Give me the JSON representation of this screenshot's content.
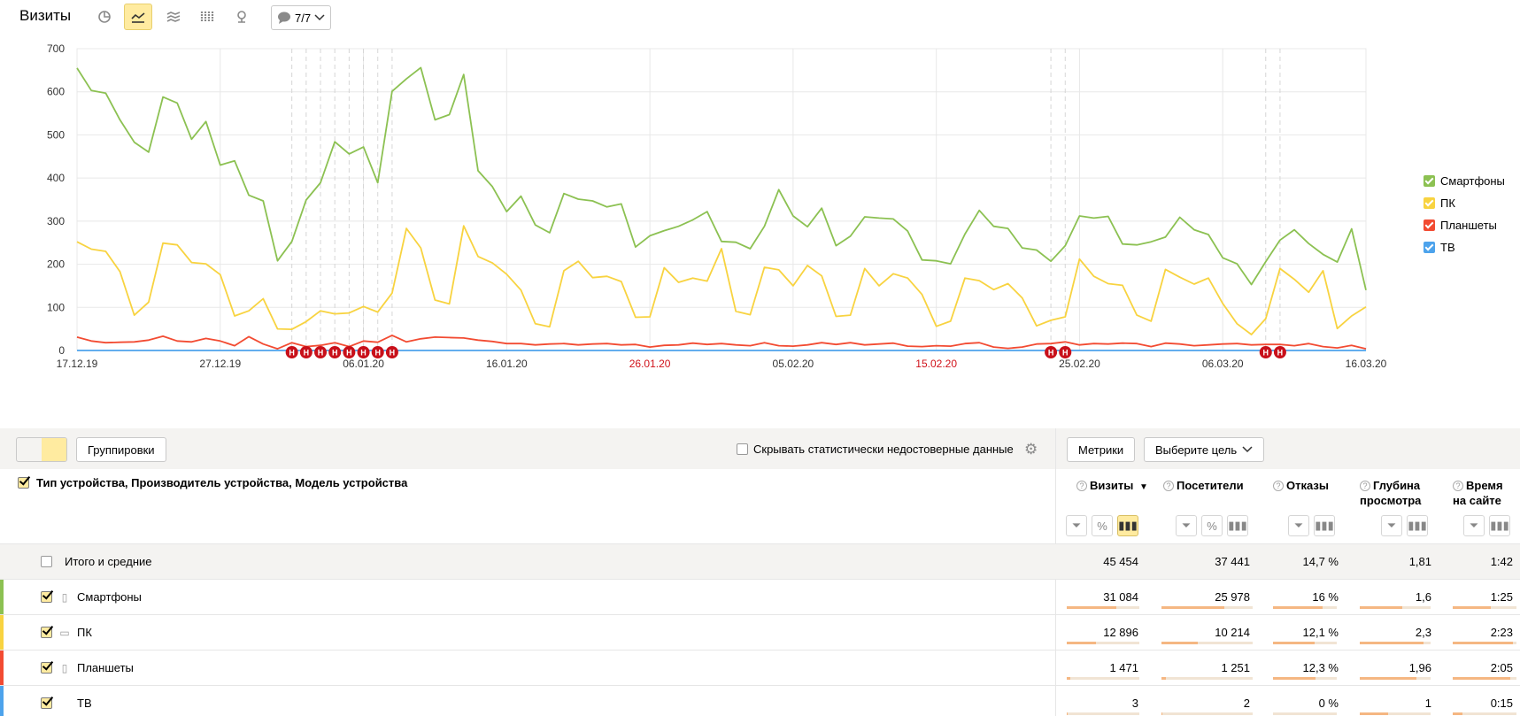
{
  "header": {
    "title": "Визиты",
    "annotations_label": "7/7"
  },
  "chart_data": {
    "type": "line",
    "ylim": [
      0,
      700
    ],
    "yticks": [
      0,
      100,
      200,
      300,
      400,
      500,
      600,
      700
    ],
    "x_tick_labels": [
      {
        "label": "17.12.19",
        "index": 0,
        "weekend": false
      },
      {
        "label": "27.12.19",
        "index": 10,
        "weekend": false
      },
      {
        "label": "06.01.20",
        "index": 20,
        "weekend": false
      },
      {
        "label": "16.01.20",
        "index": 30,
        "weekend": false
      },
      {
        "label": "26.01.20",
        "index": 40,
        "weekend": true
      },
      {
        "label": "05.02.20",
        "index": 50,
        "weekend": false
      },
      {
        "label": "15.02.20",
        "index": 60,
        "weekend": true
      },
      {
        "label": "25.02.20",
        "index": 70,
        "weekend": false
      },
      {
        "label": "06.03.20",
        "index": 80,
        "weekend": false
      },
      {
        "label": "16.03.20",
        "index": 90,
        "weekend": false
      }
    ],
    "marker_indices": [
      15,
      16,
      17,
      18,
      19,
      20,
      21,
      22,
      68,
      69,
      83,
      84
    ],
    "marker_label": "Н",
    "series": [
      {
        "name": "Смартфоны",
        "color": "#8cc152",
        "values": [
          655,
          603,
          597,
          535,
          483,
          460,
          588,
          574,
          490,
          531,
          430,
          440,
          360,
          347,
          208,
          253,
          349,
          389,
          484,
          456,
          472,
          389,
          601,
          630,
          656,
          535,
          547,
          640,
          417,
          380,
          322,
          358,
          291,
          273,
          364,
          351,
          347,
          333,
          340,
          240,
          266,
          278,
          288,
          303,
          322,
          253,
          251,
          236,
          288,
          373,
          312,
          287,
          330,
          243,
          265,
          310,
          307,
          305,
          277,
          210,
          208,
          201,
          270,
          325,
          288,
          283,
          238,
          233,
          207,
          243,
          312,
          307,
          311,
          247,
          245,
          252,
          263,
          309,
          280,
          269,
          215,
          201,
          153,
          206,
          256,
          280,
          248,
          223,
          205,
          282,
          140
        ]
      },
      {
        "name": "ПК",
        "color": "#f8d340",
        "values": [
          252,
          235,
          230,
          183,
          82,
          112,
          249,
          245,
          204,
          201,
          176,
          80,
          92,
          120,
          50,
          49,
          67,
          92,
          85,
          87,
          102,
          89,
          133,
          283,
          238,
          117,
          108,
          289,
          218,
          203,
          177,
          140,
          62,
          55,
          185,
          207,
          169,
          172,
          160,
          77,
          78,
          192,
          158,
          168,
          161,
          236,
          91,
          83,
          193,
          187,
          150,
          197,
          173,
          79,
          82,
          190,
          150,
          178,
          168,
          130,
          56,
          68,
          168,
          162,
          141,
          155,
          122,
          57,
          70,
          78,
          212,
          172,
          155,
          151,
          82,
          68,
          188,
          170,
          154,
          168,
          109,
          62,
          37,
          74,
          190,
          165,
          135,
          185,
          51,
          80,
          101
        ]
      },
      {
        "name": "Планшеты",
        "color": "#f24b32",
        "values": [
          31,
          22,
          18,
          19,
          20,
          24,
          33,
          22,
          20,
          28,
          22,
          11,
          32,
          15,
          4,
          18,
          9,
          12,
          18,
          9,
          22,
          19,
          35,
          20,
          27,
          31,
          30,
          29,
          24,
          21,
          16,
          16,
          13,
          15,
          16,
          13,
          15,
          16,
          13,
          14,
          8,
          12,
          13,
          17,
          14,
          16,
          13,
          11,
          18,
          11,
          10,
          13,
          18,
          14,
          18,
          13,
          15,
          17,
          10,
          9,
          11,
          10,
          16,
          18,
          8,
          5,
          8,
          15,
          16,
          20,
          13,
          16,
          15,
          17,
          16,
          9,
          17,
          15,
          11,
          13,
          15,
          16,
          13,
          14,
          14,
          11,
          16,
          9,
          6,
          12,
          4
        ]
      },
      {
        "name": "ТВ",
        "color": "#4da3ec",
        "values": [
          0,
          0,
          0,
          0,
          0,
          0,
          0,
          0,
          0,
          0,
          0,
          0,
          0,
          0,
          0,
          0,
          0,
          0,
          0,
          0,
          0,
          0,
          0,
          0,
          0,
          0,
          0,
          0,
          0,
          0,
          0,
          0,
          0,
          0,
          0,
          0,
          0,
          0,
          0,
          0,
          0,
          0,
          0,
          0,
          0,
          0,
          0,
          0,
          0,
          0,
          0,
          0,
          0,
          0,
          0,
          0,
          0,
          0,
          0,
          0,
          0,
          0,
          0,
          0,
          0,
          0,
          0,
          0,
          0,
          0,
          0,
          0,
          0,
          0,
          0,
          0,
          0,
          0,
          0,
          0,
          0,
          0,
          0,
          0,
          0,
          0,
          0,
          0,
          0,
          0,
          0
        ]
      }
    ]
  },
  "toolbar": {
    "groupings_label": "Группировки",
    "hide_unreliable_label": "Скрывать статистически недостоверные данные",
    "metrics_label": "Метрики",
    "goal_label": "Выберите цель"
  },
  "table": {
    "dimension_header": "Тип устройства, Производитель устройства, Модель устройства",
    "columns": [
      {
        "label": "Визиты",
        "sorted": true,
        "sort_arrow": "▼"
      },
      {
        "label": "Посетители"
      },
      {
        "label": "Отказы"
      },
      {
        "label": "Глубина просмотра"
      },
      {
        "label": "Время на сайте"
      }
    ],
    "total": {
      "label": "Итого и средние",
      "values": [
        "45 454",
        "37 441",
        "14,7 %",
        "1,81",
        "1:42"
      ]
    },
    "rows": [
      {
        "label": "Смартфоны",
        "color": "#8cc152",
        "icon": "smartphone-icon",
        "values": [
          "31 084",
          "25 978",
          "16 %",
          "1,6",
          "1:25"
        ],
        "shares": [
          0.68,
          0.69,
          0.78,
          0.6,
          0.6
        ]
      },
      {
        "label": "ПК",
        "color": "#f8d340",
        "icon": "desktop-icon",
        "values": [
          "12 896",
          "10 214",
          "12,1 %",
          "2,3",
          "2:23"
        ],
        "shares": [
          0.4,
          0.4,
          0.65,
          0.9,
          0.95
        ]
      },
      {
        "label": "Планшеты",
        "color": "#f24b32",
        "icon": "tablet-icon",
        "values": [
          "1 471",
          "1 251",
          "12,3 %",
          "1,96",
          "2:05"
        ],
        "shares": [
          0.05,
          0.05,
          0.66,
          0.8,
          0.9
        ]
      },
      {
        "label": "ТВ",
        "color": "#4da3ec",
        "icon": "tv-icon",
        "values": [
          "3",
          "2",
          "0 %",
          "1",
          "0:15"
        ],
        "shares": [
          0.01,
          0.01,
          0.0,
          0.4,
          0.15
        ]
      }
    ]
  }
}
